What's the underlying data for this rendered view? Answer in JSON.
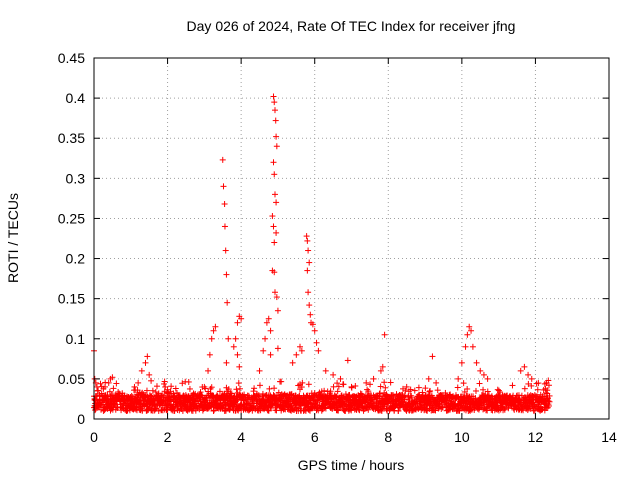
{
  "chart_data": {
    "type": "scatter",
    "title": "Day 026 of 2024, Rate Of TEC Index for receiver jfng",
    "xlabel": "GPS time / hours",
    "ylabel": "ROTI / TECUs",
    "xlim": [
      0,
      14
    ],
    "ylim": [
      0,
      0.45
    ],
    "xticks": [
      0,
      2,
      4,
      6,
      8,
      10,
      12,
      14
    ],
    "xtick_labels": [
      "0",
      "2",
      "4",
      "6",
      "8",
      "10",
      "12",
      "14"
    ],
    "yticks": [
      0,
      0.05,
      0.1,
      0.15,
      0.2,
      0.25,
      0.3,
      0.35,
      0.4,
      0.45
    ],
    "ytick_labels": [
      "0",
      "0.05",
      "0.1",
      "0.15",
      "0.2",
      "0.25",
      "0.3",
      "0.35",
      "0.4",
      "0.45"
    ],
    "grid": true,
    "marker": "+",
    "marker_color": "#ff0000",
    "series": [
      {
        "name": "ROTI",
        "points": [
          [
            0.0,
            0.085
          ],
          [
            0.02,
            0.05
          ],
          [
            0.05,
            0.045
          ],
          [
            0.08,
            0.04
          ],
          [
            0.1,
            0.035
          ],
          [
            0.15,
            0.03
          ],
          [
            0.3,
            0.04
          ],
          [
            0.4,
            0.045
          ],
          [
            0.45,
            0.05
          ],
          [
            0.5,
            0.052
          ],
          [
            1.1,
            0.04
          ],
          [
            1.2,
            0.045
          ],
          [
            1.3,
            0.06
          ],
          [
            1.4,
            0.07
          ],
          [
            1.45,
            0.078
          ],
          [
            1.5,
            0.055
          ],
          [
            3.0,
            0.04
          ],
          [
            3.1,
            0.06
          ],
          [
            3.15,
            0.08
          ],
          [
            3.2,
            0.1
          ],
          [
            3.25,
            0.11
          ],
          [
            3.3,
            0.115
          ],
          [
            3.5,
            0.323
          ],
          [
            3.52,
            0.29
          ],
          [
            3.55,
            0.268
          ],
          [
            3.56,
            0.24
          ],
          [
            3.58,
            0.21
          ],
          [
            3.6,
            0.18
          ],
          [
            3.62,
            0.145
          ],
          [
            3.65,
            0.1
          ],
          [
            3.6,
            0.07
          ],
          [
            3.8,
            0.09
          ],
          [
            3.85,
            0.1
          ],
          [
            3.9,
            0.12
          ],
          [
            3.95,
            0.128
          ],
          [
            4.0,
            0.125
          ],
          [
            3.9,
            0.08
          ],
          [
            3.95,
            0.065
          ],
          [
            4.5,
            0.06
          ],
          [
            4.6,
            0.085
          ],
          [
            4.65,
            0.1
          ],
          [
            4.7,
            0.12
          ],
          [
            4.75,
            0.125
          ],
          [
            4.8,
            0.11
          ],
          [
            4.88,
            0.402
          ],
          [
            4.9,
            0.395
          ],
          [
            4.92,
            0.385
          ],
          [
            4.94,
            0.372
          ],
          [
            4.95,
            0.352
          ],
          [
            4.97,
            0.34
          ],
          [
            4.88,
            0.32
          ],
          [
            4.9,
            0.305
          ],
          [
            4.92,
            0.28
          ],
          [
            4.95,
            0.27
          ],
          [
            4.85,
            0.253
          ],
          [
            4.88,
            0.24
          ],
          [
            4.95,
            0.232
          ],
          [
            4.9,
            0.22
          ],
          [
            4.85,
            0.185
          ],
          [
            4.9,
            0.183
          ],
          [
            4.92,
            0.158
          ],
          [
            4.97,
            0.152
          ],
          [
            5.0,
            0.135
          ],
          [
            5.0,
            0.088
          ],
          [
            4.8,
            0.08
          ],
          [
            5.4,
            0.07
          ],
          [
            5.5,
            0.08
          ],
          [
            5.6,
            0.09
          ],
          [
            5.65,
            0.085
          ],
          [
            5.78,
            0.228
          ],
          [
            5.8,
            0.222
          ],
          [
            5.82,
            0.21
          ],
          [
            5.85,
            0.195
          ],
          [
            5.8,
            0.185
          ],
          [
            5.82,
            0.158
          ],
          [
            5.85,
            0.142
          ],
          [
            5.88,
            0.13
          ],
          [
            5.9,
            0.12
          ],
          [
            5.95,
            0.118
          ],
          [
            6.0,
            0.11
          ],
          [
            6.05,
            0.095
          ],
          [
            6.1,
            0.085
          ],
          [
            6.3,
            0.06
          ],
          [
            6.5,
            0.055
          ],
          [
            6.7,
            0.05
          ],
          [
            6.9,
            0.073
          ],
          [
            7.0,
            0.04
          ],
          [
            7.4,
            0.045
          ],
          [
            7.6,
            0.05
          ],
          [
            7.8,
            0.06
          ],
          [
            7.9,
            0.105
          ],
          [
            7.85,
            0.065
          ],
          [
            8.5,
            0.04
          ],
          [
            9.1,
            0.05
          ],
          [
            9.2,
            0.078
          ],
          [
            9.3,
            0.045
          ],
          [
            9.9,
            0.05
          ],
          [
            10.0,
            0.07
          ],
          [
            10.1,
            0.09
          ],
          [
            10.15,
            0.105
          ],
          [
            10.2,
            0.115
          ],
          [
            10.25,
            0.11
          ],
          [
            10.3,
            0.09
          ],
          [
            10.4,
            0.07
          ],
          [
            10.5,
            0.06
          ],
          [
            10.6,
            0.055
          ],
          [
            10.7,
            0.05
          ],
          [
            11.6,
            0.06
          ],
          [
            11.7,
            0.065
          ],
          [
            11.8,
            0.055
          ],
          [
            11.9,
            0.05
          ],
          [
            12.3,
            0.045
          ],
          [
            12.35,
            0.048
          ]
        ]
      }
    ]
  }
}
